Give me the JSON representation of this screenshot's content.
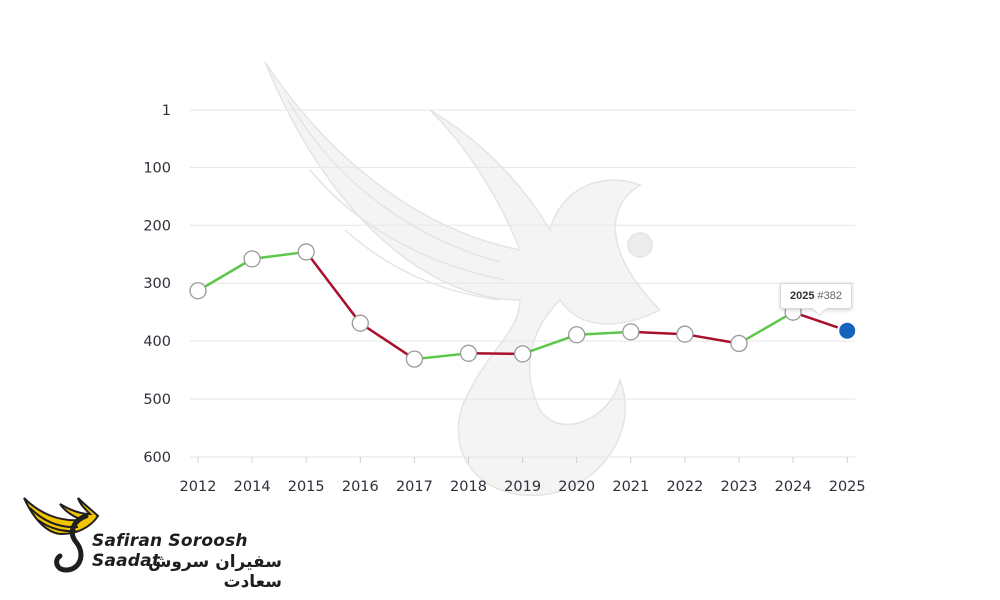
{
  "chart_data": {
    "type": "line",
    "x": [
      "2012",
      "2014",
      "2015",
      "2016",
      "2017",
      "2018",
      "2019",
      "2020",
      "2021",
      "2022",
      "2023",
      "2024",
      "2025"
    ],
    "values": [
      313,
      258,
      246,
      369,
      431,
      421,
      422,
      389,
      384,
      388,
      404,
      350,
      382
    ],
    "ylim": [
      1,
      600
    ],
    "y_inverted": true,
    "y_ticks": [
      1,
      100,
      200,
      300,
      400,
      500,
      600
    ],
    "y_tick_labels": [
      "1",
      "100",
      "200",
      "300",
      "400",
      "500",
      "600"
    ],
    "grid": "horizontal",
    "colors": {
      "rank_improved": "#5cc748",
      "rank_declined": "#a8102e",
      "highlight_point": "#1565c0",
      "point_fill": "#ffffff",
      "point_stroke": "#9a9a9a",
      "grid": "#e6e6e6"
    },
    "highlight": {
      "year": "2025",
      "value": 382
    },
    "title": "",
    "xlabel": "",
    "ylabel": ""
  },
  "tooltip": {
    "year": "2025",
    "rank": "#382"
  },
  "logo": {
    "name_en": "Safiran Soroosh Saadat",
    "name_fa": "سفیران سروش سعادت",
    "watermark_icon": "bird-wing-s-icon",
    "wing_color": "#f2c500"
  }
}
